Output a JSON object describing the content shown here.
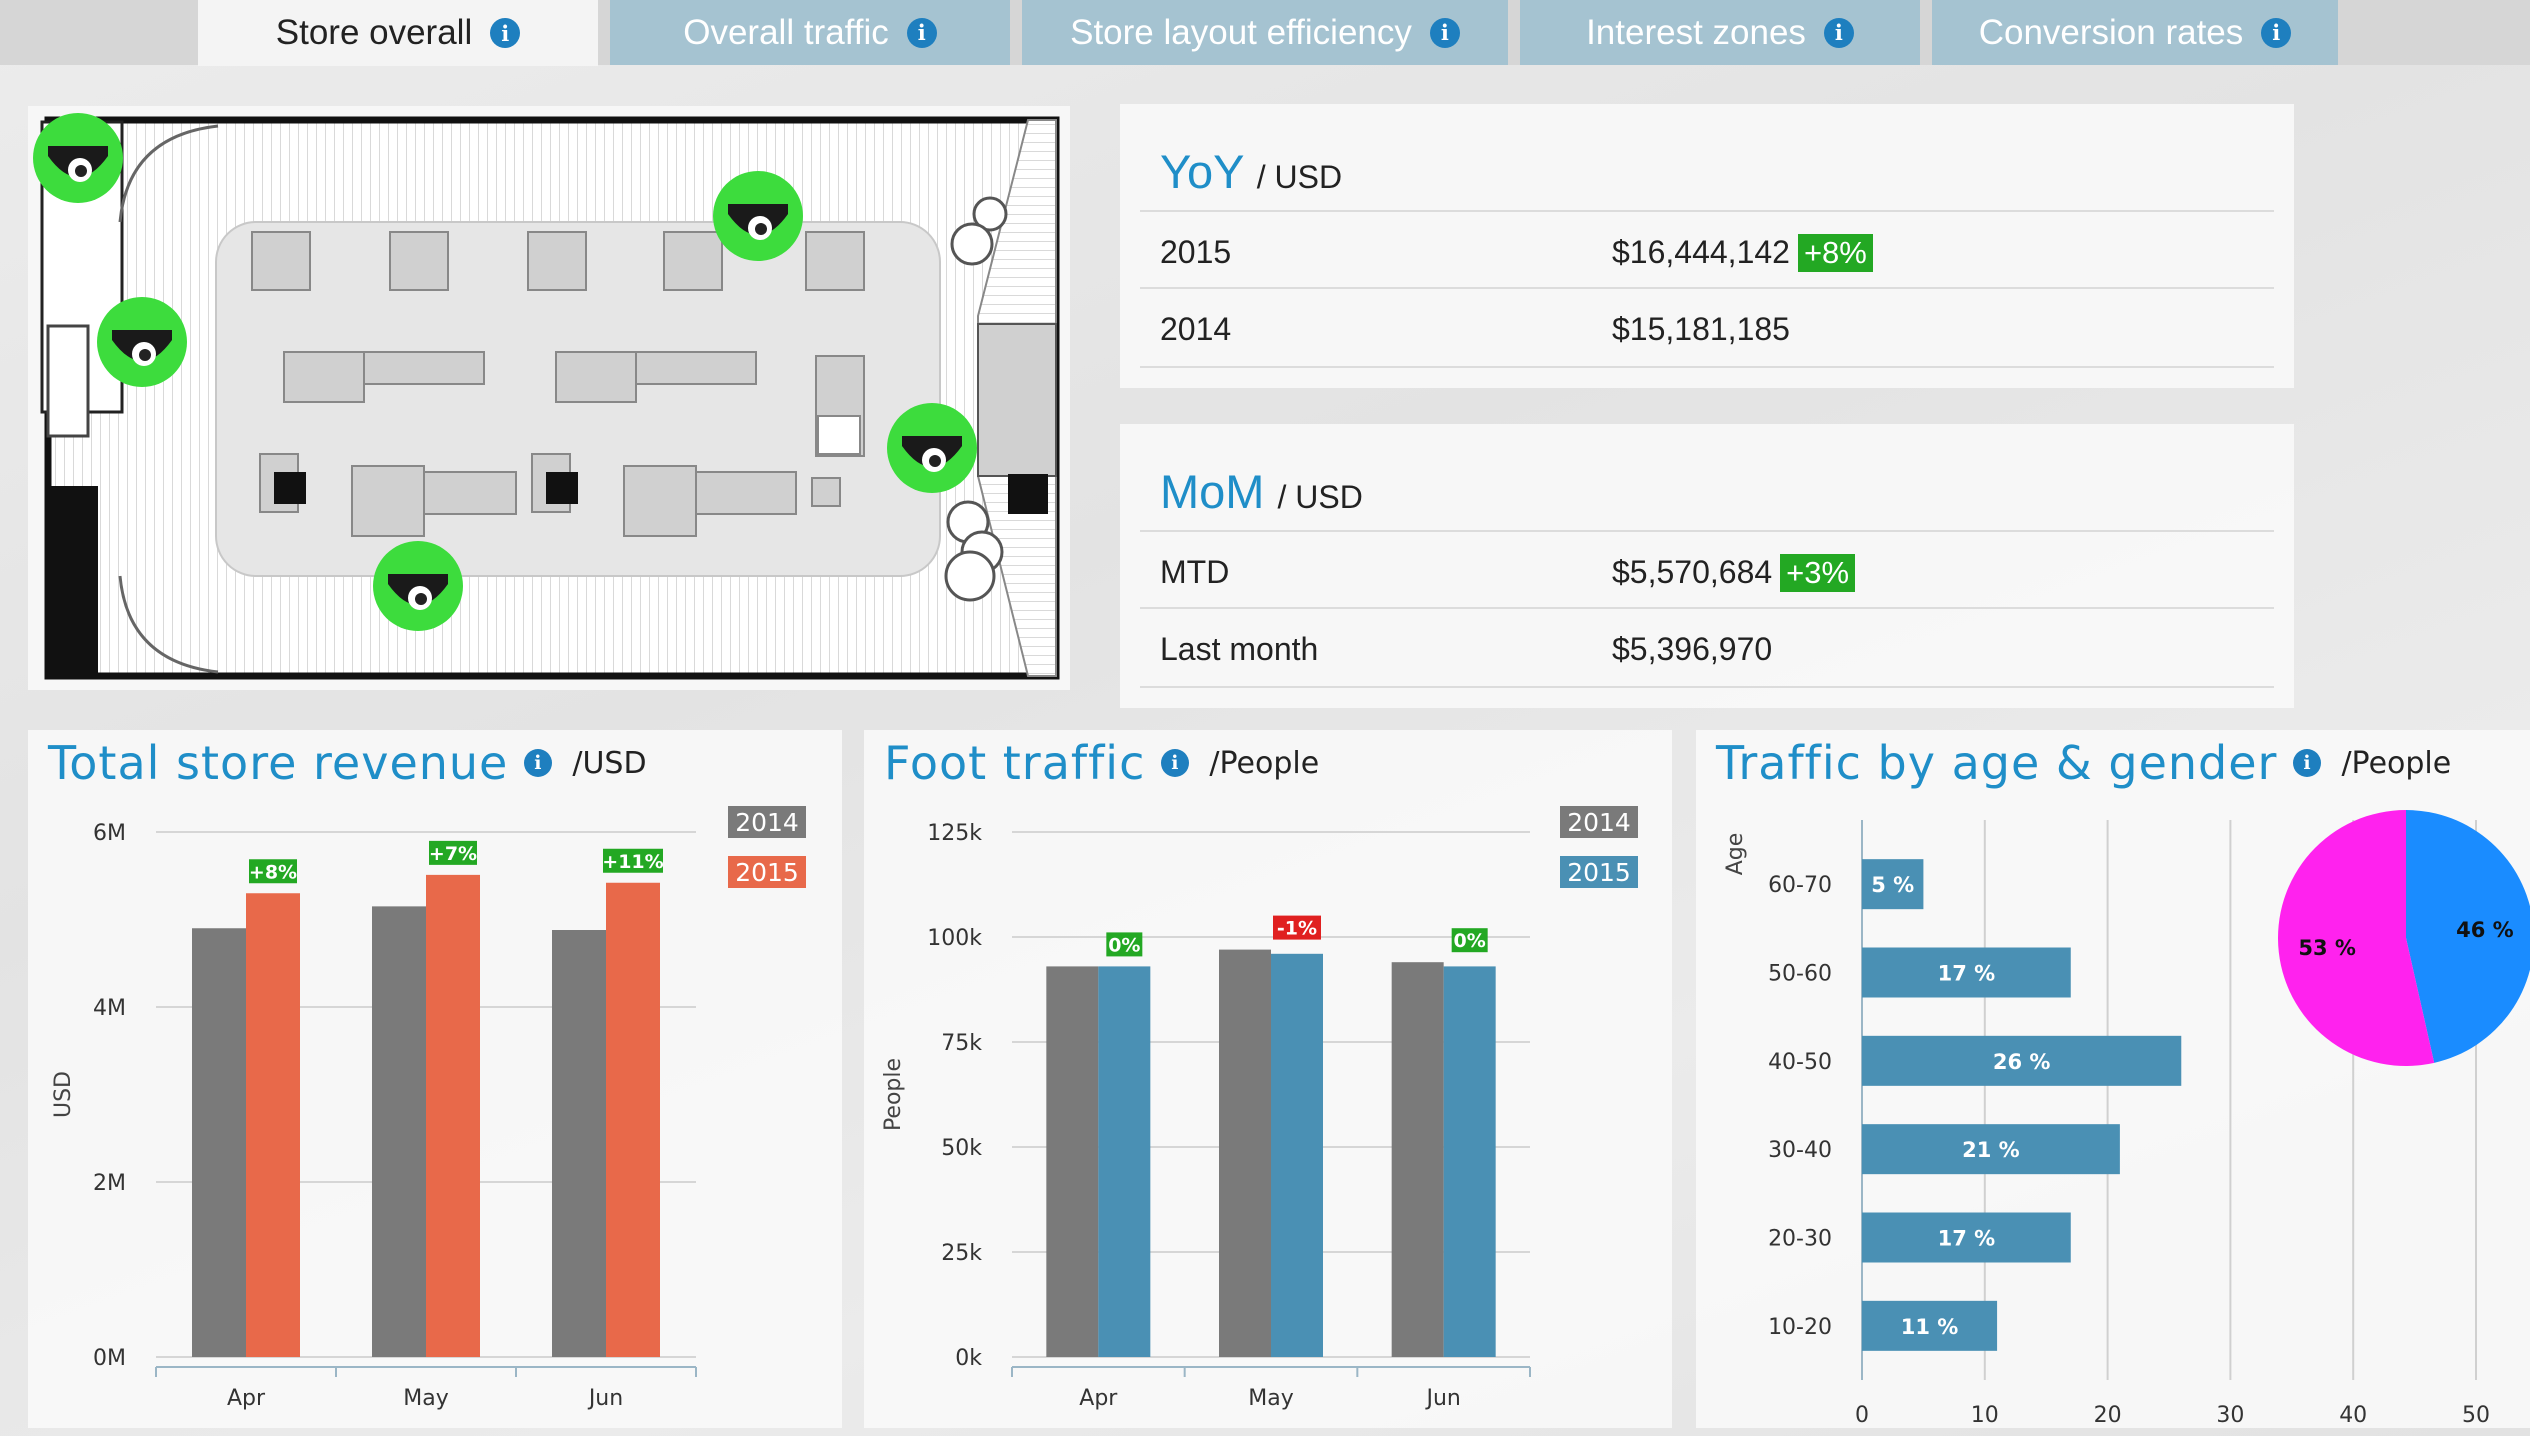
{
  "tabs": [
    {
      "label": "Store overall",
      "active": true
    },
    {
      "label": "Overall traffic",
      "active": false
    },
    {
      "label": "Store layout efficiency",
      "active": false
    },
    {
      "label": "Interest zones",
      "active": false
    },
    {
      "label": "Conversion rates",
      "active": false
    }
  ],
  "info_glyph": "i",
  "yoy": {
    "title": "YoY",
    "unit": "/ USD",
    "rows": [
      {
        "label": "2015",
        "value": "$16,444,142",
        "change": "+8%"
      },
      {
        "label": "2014",
        "value": "$15,181,185",
        "change": ""
      }
    ]
  },
  "mom": {
    "title": "MoM",
    "unit": "/ USD",
    "rows": [
      {
        "label": "MTD",
        "value": "$5,570,684",
        "change": "+3%"
      },
      {
        "label": "Last month",
        "value": "$5,396,970",
        "change": ""
      }
    ]
  },
  "floorplan": {
    "cameras": 5,
    "camera_color": "#3ddc3d",
    "icon": "security-camera-icon"
  },
  "chart_data": [
    {
      "type": "bar",
      "title": "Total store revenue",
      "unit": "/USD",
      "ylabel": "USD",
      "categories": [
        "Apr",
        "May",
        "Jun"
      ],
      "yticks": [
        "0M",
        "2M",
        "4M",
        "6M"
      ],
      "ylim": [
        0,
        6000000
      ],
      "series": [
        {
          "name": "2014",
          "color": "#7a7a7a",
          "values": [
            4900000,
            5150000,
            4880000
          ]
        },
        {
          "name": "2015",
          "color": "#e8694a",
          "values": [
            5300000,
            5510000,
            5420000
          ]
        }
      ],
      "labels": [
        {
          "text": "+8%",
          "color": "#23a823"
        },
        {
          "text": "+7%",
          "color": "#23a823"
        },
        {
          "text": "+11%",
          "color": "#23a823"
        }
      ],
      "legend": "top-right",
      "grid": true
    },
    {
      "type": "bar",
      "title": "Foot traffic",
      "unit": "/People",
      "ylabel": "People",
      "categories": [
        "Apr",
        "May",
        "Jun"
      ],
      "yticks": [
        "0k",
        "25k",
        "50k",
        "75k",
        "100k",
        "125k"
      ],
      "ylim": [
        0,
        125000
      ],
      "series": [
        {
          "name": "2014",
          "color": "#7a7a7a",
          "values": [
            93000,
            97000,
            94000
          ]
        },
        {
          "name": "2015",
          "color": "#4a90b4",
          "values": [
            93000,
            96000,
            93000
          ]
        }
      ],
      "labels": [
        {
          "text": "0%",
          "color": "#23a823"
        },
        {
          "text": "-1%",
          "color": "#e02020"
        },
        {
          "text": "0%",
          "color": "#23a823"
        }
      ],
      "legend": "top-right",
      "grid": true
    },
    {
      "type": "bar",
      "orientation": "horizontal",
      "title": "Traffic by age & gender",
      "unit": "/People",
      "ylabel": "Age",
      "categories": [
        "60-70",
        "50-60",
        "40-50",
        "30-40",
        "20-30",
        "10-20"
      ],
      "values": [
        5,
        17,
        26,
        21,
        17,
        11
      ],
      "value_labels": [
        "5 %",
        "17 %",
        "26 %",
        "21 %",
        "17 %",
        "11 %"
      ],
      "xticks": [
        "0",
        "10",
        "20",
        "30",
        "40",
        "50"
      ],
      "xlim": [
        0,
        50
      ],
      "color": "#4a90b4",
      "grid": true
    },
    {
      "type": "pie",
      "slices": [
        {
          "label": "53 %",
          "value": 53,
          "color": "#ff22ee"
        },
        {
          "label": "46 %",
          "value": 46,
          "color": "#1a8cff"
        }
      ]
    }
  ]
}
